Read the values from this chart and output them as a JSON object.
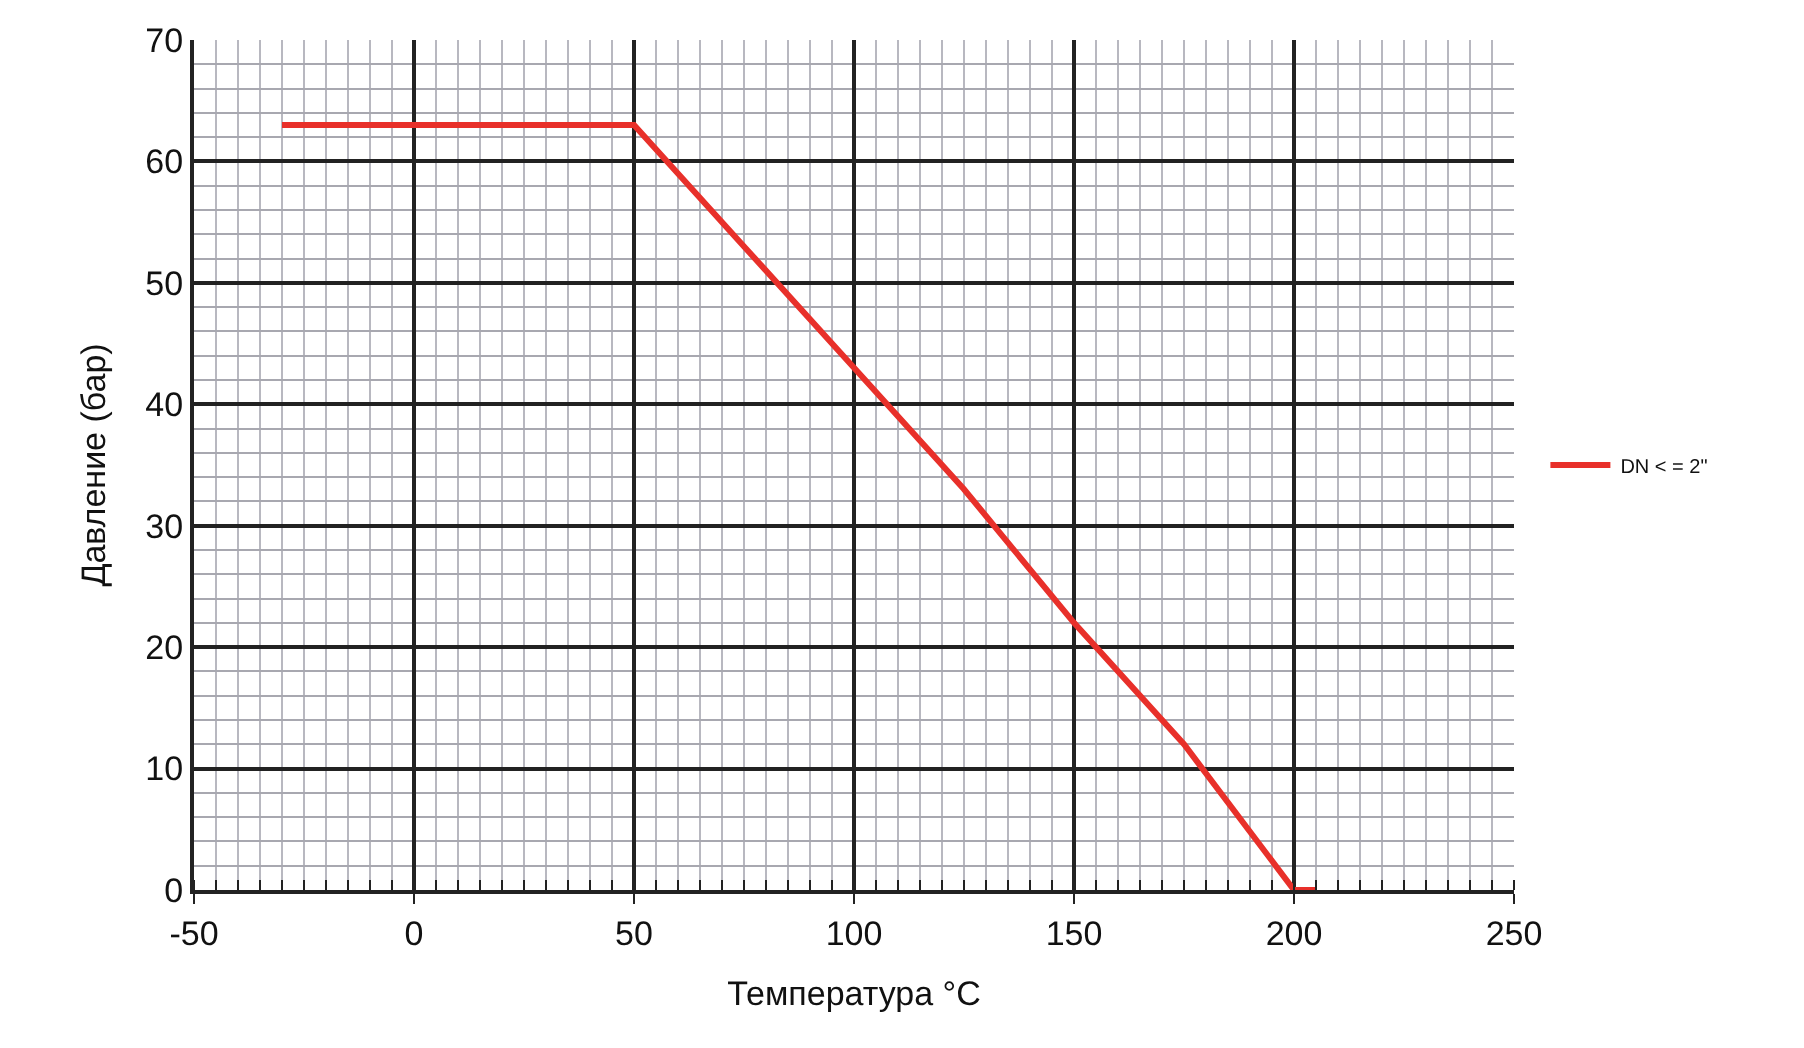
{
  "chart_data": {
    "type": "line",
    "xlabel": "Температура °C",
    "ylabel": "Давление (бар)",
    "series": [
      {
        "name": "DN < = 2\"",
        "color": "#e8302a",
        "x": [
          -30,
          50,
          75,
          100,
          125,
          150,
          175,
          200,
          205
        ],
        "values": [
          63,
          63,
          53,
          43,
          33,
          22,
          12,
          0,
          0
        ]
      }
    ],
    "xlim": [
      -50,
      250
    ],
    "xticks": [
      -50,
      0,
      50,
      100,
      150,
      200,
      250
    ],
    "ylim": [
      0,
      70
    ],
    "yticks": [
      0,
      10,
      20,
      30,
      40,
      50,
      60,
      70
    ],
    "grid": true,
    "legend": "right",
    "marker": "none",
    "line_style": "solid"
  }
}
